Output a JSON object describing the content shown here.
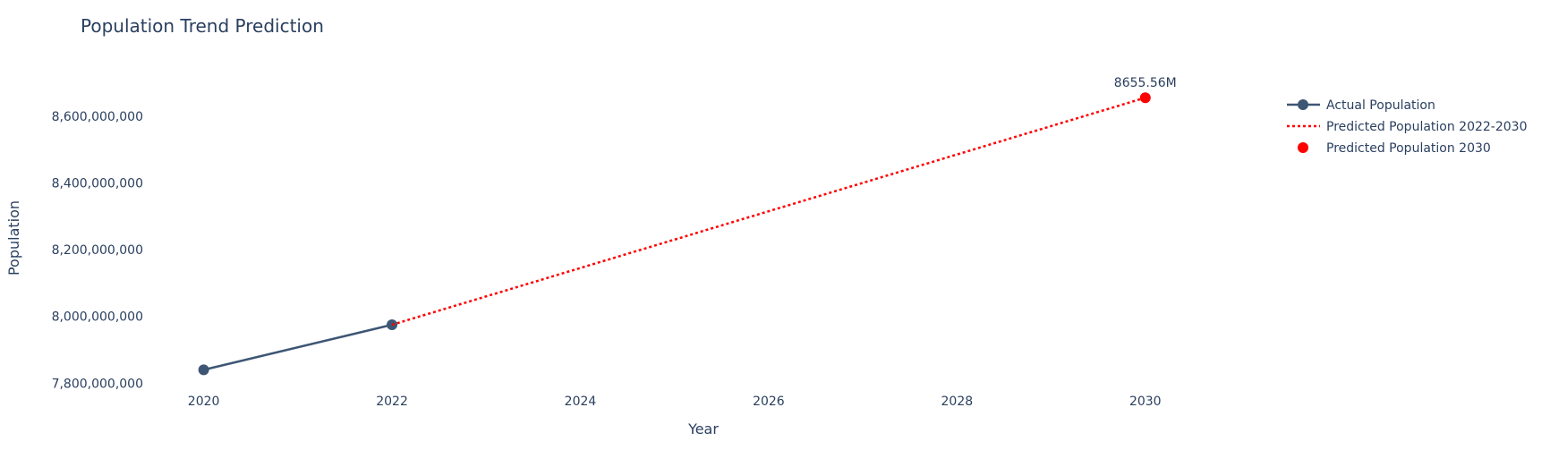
{
  "chart_data": {
    "type": "line",
    "title": "Population Trend Prediction",
    "xlabel": "Year",
    "ylabel": "Population",
    "xlim": [
      2019.5,
      2031
    ],
    "ylim": [
      7790000000,
      8750000000
    ],
    "x_ticks": [
      2020,
      2022,
      2024,
      2026,
      2028,
      2030
    ],
    "x_tick_labels": [
      "2020",
      "2022",
      "2024",
      "2026",
      "2028",
      "2030"
    ],
    "y_ticks": [
      7800000000,
      8000000000,
      8200000000,
      8400000000,
      8600000000
    ],
    "y_tick_labels": [
      "7,800,000,000",
      "8,000,000,000",
      "8,200,000,000",
      "8,400,000,000",
      "8,600,000,000"
    ],
    "grid": false,
    "legend_position": "top-right",
    "series": [
      {
        "name": "Actual Population",
        "mode": "lines+markers",
        "color": "#3d5674",
        "x": [
          2020,
          2022
        ],
        "y": [
          7840000000,
          7975000000
        ]
      },
      {
        "name": "Predicted Population 2022-2030",
        "mode": "lines",
        "dash": "dot",
        "color": "#ff0000",
        "x": [
          2022,
          2030
        ],
        "y": [
          7975000000,
          8655560000
        ]
      },
      {
        "name": "Predicted Population 2030",
        "mode": "markers",
        "color": "#ff0000",
        "x": [
          2030
        ],
        "y": [
          8655560000
        ],
        "label": "8655.56M"
      }
    ]
  }
}
